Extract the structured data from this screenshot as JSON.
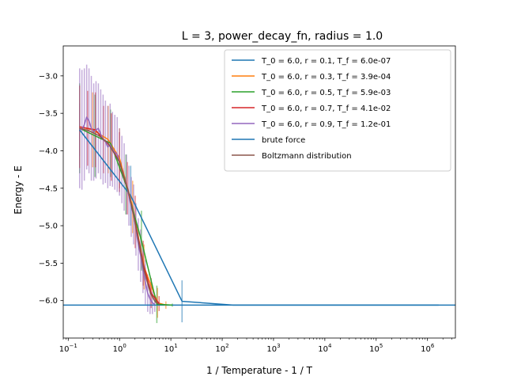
{
  "chart_data": {
    "type": "line",
    "title": "L = 3, power_decay_fn, radius = 1.0",
    "xlabel": "1 / Temperature - 1 / T",
    "ylabel": "Energy - E",
    "xscale": "log",
    "xlim": [
      0.08,
      3500000
    ],
    "ylim": [
      -6.5,
      -2.6
    ],
    "xticks": [
      {
        "value": 0.1,
        "base": "10",
        "exp": "−1"
      },
      {
        "value": 1,
        "base": "10",
        "exp": "0"
      },
      {
        "value": 10,
        "base": "10",
        "exp": "1"
      },
      {
        "value": 100,
        "base": "10",
        "exp": "2"
      },
      {
        "value": 1000,
        "base": "10",
        "exp": "3"
      },
      {
        "value": 10000,
        "base": "10",
        "exp": "4"
      },
      {
        "value": 100000,
        "base": "10",
        "exp": "5"
      },
      {
        "value": 1000000,
        "base": "10",
        "exp": "6"
      }
    ],
    "yticks": [
      {
        "value": -3.0,
        "label": "−3.0"
      },
      {
        "value": -3.5,
        "label": "−3.5"
      },
      {
        "value": -4.0,
        "label": "−4.0"
      },
      {
        "value": -4.5,
        "label": "−4.5"
      },
      {
        "value": -5.0,
        "label": "−5.0"
      },
      {
        "value": -5.5,
        "label": "−5.5"
      },
      {
        "value": -6.0,
        "label": "−6.0"
      }
    ],
    "grid": false,
    "legend_position": "top-right",
    "series": [
      {
        "name": "T_0 = 6.0, r = 0.1, T_f = 6.0e-07",
        "color": "#1f77b4",
        "points": [
          {
            "x": 0.167,
            "y": -3.72,
            "err": 0.35
          },
          {
            "x": 1.65,
            "y": -4.6,
            "err": 0.4
          },
          {
            "x": 16.5,
            "y": -6.01,
            "err": 0.28
          },
          {
            "x": 165,
            "y": -6.06,
            "err": 0.0
          },
          {
            "x": 1650000,
            "y": -6.06,
            "err": 0.0
          }
        ]
      },
      {
        "name": "T_0 = 6.0, r = 0.3, T_f = 3.9e-04",
        "color": "#ff7f0e",
        "points": [
          {
            "x": 0.167,
            "y": -3.68,
            "err": 0.55
          },
          {
            "x": 0.3,
            "y": -3.72,
            "err": 0.5
          },
          {
            "x": 0.6,
            "y": -3.85,
            "err": 0.45
          },
          {
            "x": 1.0,
            "y": -4.1,
            "err": 0.4
          },
          {
            "x": 1.8,
            "y": -4.75,
            "err": 0.35
          },
          {
            "x": 3.0,
            "y": -5.55,
            "err": 0.3
          },
          {
            "x": 5.5,
            "y": -6.03,
            "err": 0.2
          },
          {
            "x": 8.0,
            "y": -6.06,
            "err": 0.05
          }
        ]
      },
      {
        "name": "T_0 = 6.0, r = 0.5, T_f = 5.9e-03",
        "color": "#2ca02c",
        "points": [
          {
            "x": 0.167,
            "y": -3.7,
            "err": 0.6
          },
          {
            "x": 0.333,
            "y": -3.8,
            "err": 0.55
          },
          {
            "x": 0.667,
            "y": -3.9,
            "err": 0.45
          },
          {
            "x": 1.33,
            "y": -4.45,
            "err": 0.4
          },
          {
            "x": 2.67,
            "y": -5.2,
            "err": 0.4
          },
          {
            "x": 5.33,
            "y": -6.05,
            "err": 0.25
          },
          {
            "x": 10.7,
            "y": -6.06,
            "err": 0.02
          }
        ]
      },
      {
        "name": "T_0 = 6.0, r = 0.7, T_f = 4.1e-02",
        "color": "#d62728",
        "points": [
          {
            "x": 0.167,
            "y": -3.68,
            "err": 0.55
          },
          {
            "x": 0.238,
            "y": -3.7,
            "err": 0.5
          },
          {
            "x": 0.34,
            "y": -3.72,
            "err": 0.5
          },
          {
            "x": 0.486,
            "y": -3.85,
            "err": 0.45
          },
          {
            "x": 0.694,
            "y": -3.95,
            "err": 0.45
          },
          {
            "x": 0.992,
            "y": -4.15,
            "err": 0.4
          },
          {
            "x": 1.42,
            "y": -4.5,
            "err": 0.35
          },
          {
            "x": 2.02,
            "y": -4.95,
            "err": 0.35
          },
          {
            "x": 2.89,
            "y": -5.5,
            "err": 0.3
          },
          {
            "x": 4.13,
            "y": -5.9,
            "err": 0.2
          },
          {
            "x": 5.9,
            "y": -6.04,
            "err": 0.1
          }
        ]
      },
      {
        "name": "T_0 = 6.0, r = 0.9, T_f = 1.2e-01",
        "color": "#9467bd",
        "points": [
          {
            "x": 0.167,
            "y": -3.7,
            "err": 0.8
          },
          {
            "x": 0.185,
            "y": -3.72,
            "err": 0.8
          },
          {
            "x": 0.206,
            "y": -3.65,
            "err": 0.75
          },
          {
            "x": 0.229,
            "y": -3.55,
            "err": 0.7
          },
          {
            "x": 0.254,
            "y": -3.6,
            "err": 0.7
          },
          {
            "x": 0.282,
            "y": -3.7,
            "err": 0.7
          },
          {
            "x": 0.314,
            "y": -3.75,
            "err": 0.65
          },
          {
            "x": 0.348,
            "y": -3.72,
            "err": 0.65
          },
          {
            "x": 0.387,
            "y": -3.7,
            "err": 0.6
          },
          {
            "x": 0.43,
            "y": -3.78,
            "err": 0.6
          },
          {
            "x": 0.478,
            "y": -3.85,
            "err": 0.6
          },
          {
            "x": 0.531,
            "y": -3.88,
            "err": 0.55
          },
          {
            "x": 0.59,
            "y": -3.95,
            "err": 0.55
          },
          {
            "x": 0.655,
            "y": -3.92,
            "err": 0.55
          },
          {
            "x": 0.728,
            "y": -3.98,
            "err": 0.5
          },
          {
            "x": 0.809,
            "y": -4.02,
            "err": 0.5
          },
          {
            "x": 0.899,
            "y": -4.05,
            "err": 0.5
          },
          {
            "x": 0.999,
            "y": -4.15,
            "err": 0.45
          },
          {
            "x": 1.11,
            "y": -4.25,
            "err": 0.45
          },
          {
            "x": 1.23,
            "y": -4.35,
            "err": 0.45
          },
          {
            "x": 1.37,
            "y": -4.45,
            "err": 0.4
          },
          {
            "x": 1.52,
            "y": -4.6,
            "err": 0.4
          },
          {
            "x": 1.69,
            "y": -4.75,
            "err": 0.4
          },
          {
            "x": 1.88,
            "y": -4.85,
            "err": 0.4
          },
          {
            "x": 2.09,
            "y": -5.05,
            "err": 0.35
          },
          {
            "x": 2.32,
            "y": -5.25,
            "err": 0.35
          },
          {
            "x": 2.58,
            "y": -5.4,
            "err": 0.35
          },
          {
            "x": 2.86,
            "y": -5.6,
            "err": 0.3
          },
          {
            "x": 3.18,
            "y": -5.75,
            "err": 0.3
          },
          {
            "x": 3.54,
            "y": -5.9,
            "err": 0.25
          },
          {
            "x": 3.93,
            "y": -5.98,
            "err": 0.2
          },
          {
            "x": 4.37,
            "y": -6.03,
            "err": 0.15
          },
          {
            "x": 4.85,
            "y": -6.05,
            "err": 0.1
          }
        ]
      },
      {
        "name": "Boltzmann distribution",
        "color": "#8c564b",
        "points": [
          {
            "x": 0.167,
            "y": -3.7
          },
          {
            "x": 0.25,
            "y": -3.73
          },
          {
            "x": 0.4,
            "y": -3.8
          },
          {
            "x": 0.6,
            "y": -3.9
          },
          {
            "x": 1.0,
            "y": -4.15
          },
          {
            "x": 1.5,
            "y": -4.55
          },
          {
            "x": 2.0,
            "y": -4.95
          },
          {
            "x": 2.5,
            "y": -5.3
          },
          {
            "x": 3.0,
            "y": -5.6
          },
          {
            "x": 4.0,
            "y": -5.9
          },
          {
            "x": 5.0,
            "y": -6.02
          },
          {
            "x": 6.0,
            "y": -6.05
          }
        ]
      }
    ],
    "hline": {
      "name": "brute force",
      "y": -6.06,
      "color": "#1f77b4"
    },
    "legend": [
      {
        "label": "T_0 = 6.0, r = 0.1, T_f = 6.0e-07",
        "color": "#1f77b4"
      },
      {
        "label": "T_0 = 6.0, r = 0.3, T_f = 3.9e-04",
        "color": "#ff7f0e"
      },
      {
        "label": "T_0 = 6.0, r = 0.5, T_f = 5.9e-03",
        "color": "#2ca02c"
      },
      {
        "label": "T_0 = 6.0, r = 0.7, T_f = 4.1e-02",
        "color": "#d62728"
      },
      {
        "label": "T_0 = 6.0, r = 0.9, T_f = 1.2e-01",
        "color": "#9467bd"
      },
      {
        "label": "brute force",
        "color": "#1f77b4"
      },
      {
        "label": "Boltzmann distribution",
        "color": "#8c564b"
      }
    ]
  }
}
